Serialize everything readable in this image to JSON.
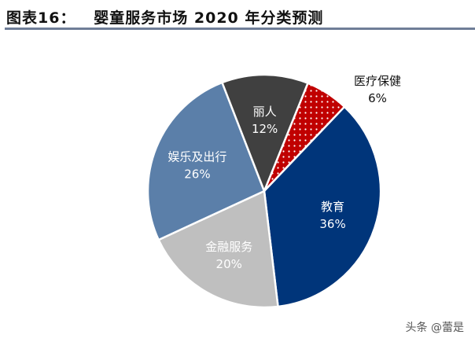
{
  "header": {
    "title": "图表16：   婴童服务市场 2020 年分类预测"
  },
  "chart_data": {
    "type": "pie",
    "title": "婴童服务市场 2020 年分类预测",
    "start_angle_deg": 22,
    "direction": "clockwise",
    "slices": [
      {
        "label": "医疗保健",
        "value": 6,
        "value_label": "6%",
        "color": "#c00000",
        "pattern": "dots",
        "label_color": "#111111"
      },
      {
        "label": "教育",
        "value": 36,
        "value_label": "36%",
        "color": "#00357a",
        "label_color": "#ffffff"
      },
      {
        "label": "金融服务",
        "value": 20,
        "value_label": "20%",
        "color": "#bfbfbf",
        "label_color": "#ffffff"
      },
      {
        "label": "娱乐及出行",
        "value": 26,
        "value_label": "26%",
        "color": "#5b7fa9",
        "label_color": "#ffffff"
      },
      {
        "label": "丽人",
        "value": 12,
        "value_label": "12%",
        "color": "#404040",
        "label_color": "#ffffff"
      }
    ]
  },
  "watermark": "头条 @蕾是"
}
